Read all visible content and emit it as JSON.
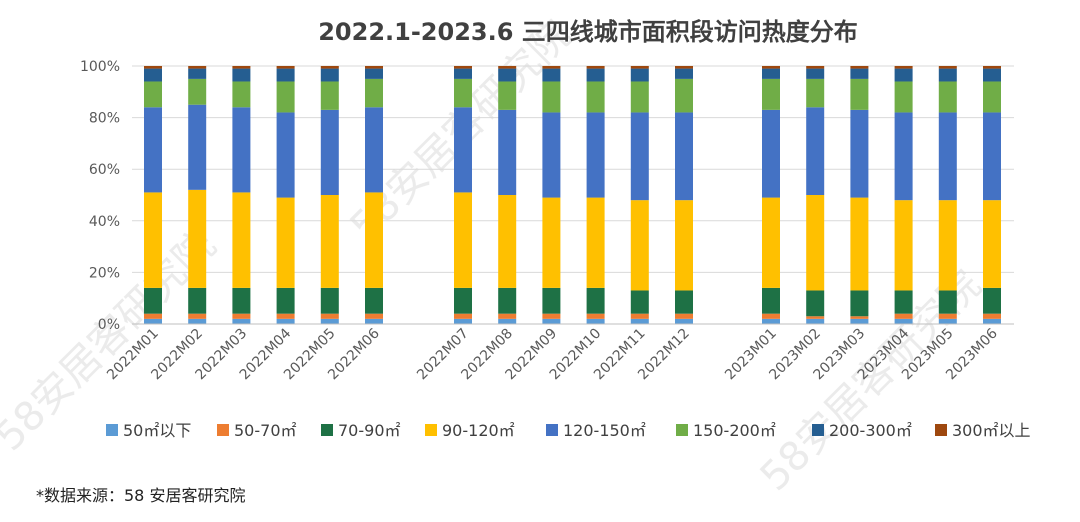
{
  "chart_data": {
    "type": "bar",
    "stacked": "percent",
    "title": "2022.1-2023.6 三四线城市面积段访问热度分布",
    "xlabel": "",
    "ylabel": "",
    "ylim": [
      0,
      100
    ],
    "yticks": [
      "0%",
      "20%",
      "40%",
      "60%",
      "80%",
      "100%"
    ],
    "groups": [
      [
        "2022M01",
        "2022M02",
        "2022M03",
        "2022M04",
        "2022M05",
        "2022M06"
      ],
      [
        "2022M07",
        "2022M08",
        "2022M09",
        "2022M10",
        "2022M11",
        "2022M12"
      ],
      [
        "2023M01",
        "2023M02",
        "2023M03",
        "2023M04",
        "2023M05",
        "2023M06"
      ]
    ],
    "categories": [
      "2022M01",
      "2022M02",
      "2022M03",
      "2022M04",
      "2022M05",
      "2022M06",
      "2022M07",
      "2022M08",
      "2022M09",
      "2022M10",
      "2022M11",
      "2022M12",
      "2023M01",
      "2023M02",
      "2023M03",
      "2023M04",
      "2023M05",
      "2023M06"
    ],
    "series": [
      {
        "name": "50㎡以下",
        "color": "#5b9bd5",
        "values": [
          2,
          2,
          2,
          2,
          2,
          2,
          2,
          2,
          2,
          2,
          2,
          2,
          2,
          2,
          2,
          2,
          2,
          2
        ]
      },
      {
        "name": "50-70㎡",
        "color": "#ed7d31",
        "values": [
          2,
          2,
          2,
          2,
          2,
          2,
          2,
          2,
          2,
          2,
          2,
          2,
          2,
          1,
          1,
          2,
          2,
          2
        ]
      },
      {
        "name": "70-90㎡",
        "color": "#1e7145",
        "values": [
          10,
          10,
          10,
          10,
          10,
          10,
          10,
          10,
          10,
          10,
          9,
          9,
          10,
          10,
          10,
          9,
          9,
          10
        ]
      },
      {
        "name": "90-120㎡",
        "color": "#ffc000",
        "values": [
          37,
          38,
          37,
          35,
          36,
          37,
          37,
          36,
          35,
          35,
          35,
          35,
          35,
          37,
          36,
          35,
          35,
          34
        ]
      },
      {
        "name": "120-150㎡",
        "color": "#4472c4",
        "values": [
          33,
          33,
          33,
          33,
          33,
          33,
          33,
          33,
          33,
          33,
          34,
          34,
          34,
          34,
          34,
          34,
          34,
          34
        ]
      },
      {
        "name": "150-200㎡",
        "color": "#70ad47",
        "values": [
          10,
          10,
          10,
          12,
          11,
          11,
          11,
          11,
          12,
          12,
          12,
          13,
          12,
          11,
          12,
          12,
          12,
          12
        ]
      },
      {
        "name": "200-300㎡",
        "color": "#255e91",
        "values": [
          5,
          4,
          5,
          5,
          5,
          4,
          4,
          5,
          5,
          5,
          5,
          4,
          4,
          4,
          4,
          5,
          5,
          5
        ]
      },
      {
        "name": "300㎡以上",
        "color": "#9e480e",
        "values": [
          1,
          1,
          1,
          1,
          1,
          1,
          1,
          1,
          1,
          1,
          1,
          1,
          1,
          1,
          1,
          1,
          1,
          1
        ]
      }
    ],
    "source": "*数据来源：58 安居客研究院",
    "watermark": "58安居客研究院"
  }
}
